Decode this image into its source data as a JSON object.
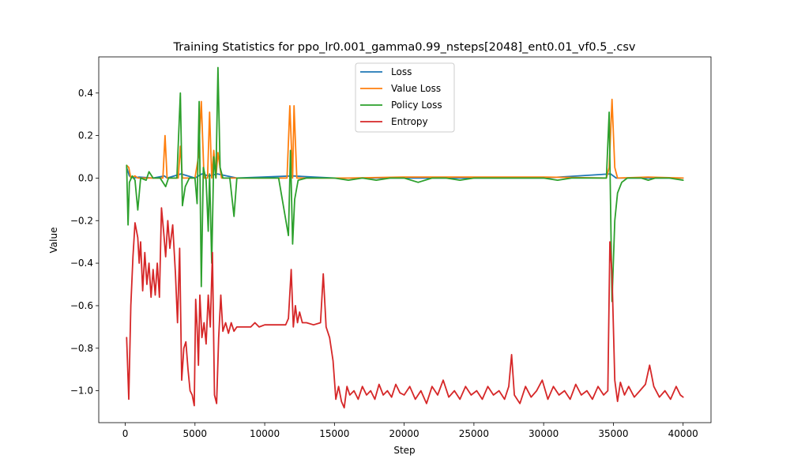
{
  "chart_data": {
    "type": "line",
    "title": "Training Statistics for ppo_lr0.001_gamma0.99_nsteps[2048]_ent0.01_vf0.5_.csv",
    "xlabel": "Step",
    "ylabel": "Value",
    "xlim": [
      -1900,
      42000
    ],
    "ylim": [
      -1.15,
      0.57
    ],
    "xticks": [
      0,
      5000,
      10000,
      15000,
      20000,
      25000,
      30000,
      35000,
      40000
    ],
    "yticks": [
      -1.0,
      -0.8,
      -0.6,
      -0.4,
      -0.2,
      0.0,
      0.2,
      0.4
    ],
    "ytick_labels": [
      "−1.0",
      "−0.8",
      "−0.6",
      "−0.4",
      "−0.2",
      "0.0",
      "0.2",
      "0.4"
    ],
    "legend_position": "upper center",
    "series": [
      {
        "name": "Loss",
        "color": "#1f77b4",
        "points": [
          [
            100,
            0.05
          ],
          [
            300,
            0.01
          ],
          [
            600,
            0.0
          ],
          [
            1000,
            0.005
          ],
          [
            2000,
            0.0
          ],
          [
            2800,
            0.01
          ],
          [
            3000,
            0.0
          ],
          [
            4000,
            0.02
          ],
          [
            5000,
            0.0
          ],
          [
            5500,
            0.02
          ],
          [
            6000,
            0.01
          ],
          [
            6600,
            0.02
          ],
          [
            8000,
            0.0
          ],
          [
            12000,
            0.01
          ],
          [
            15000,
            0.0
          ],
          [
            20000,
            0.0
          ],
          [
            25000,
            0.0
          ],
          [
            30000,
            0.0
          ],
          [
            34800,
            0.02
          ],
          [
            35200,
            0.0
          ],
          [
            40000,
            0.0
          ]
        ]
      },
      {
        "name": "Value Loss",
        "color": "#ff7f0e",
        "points": [
          [
            100,
            0.06
          ],
          [
            250,
            0.05
          ],
          [
            400,
            0.0
          ],
          [
            700,
            0.01
          ],
          [
            900,
            0.0
          ],
          [
            1500,
            0.0
          ],
          [
            2700,
            0.0
          ],
          [
            2850,
            0.2
          ],
          [
            3000,
            0.0
          ],
          [
            3800,
            0.0
          ],
          [
            3950,
            0.15
          ],
          [
            4100,
            0.0
          ],
          [
            5000,
            0.0
          ],
          [
            5250,
            0.1
          ],
          [
            5450,
            0.36
          ],
          [
            5650,
            0.0
          ],
          [
            5900,
            0.0
          ],
          [
            6050,
            0.31
          ],
          [
            6200,
            0.0
          ],
          [
            6350,
            0.13
          ],
          [
            6500,
            0.0
          ],
          [
            6650,
            0.12
          ],
          [
            6900,
            0.0
          ],
          [
            8000,
            0.0
          ],
          [
            11600,
            0.0
          ],
          [
            11800,
            0.34
          ],
          [
            12000,
            0.0
          ],
          [
            12100,
            0.34
          ],
          [
            12300,
            0.0
          ],
          [
            13500,
            0.0
          ],
          [
            16000,
            0.0
          ],
          [
            20000,
            0.005
          ],
          [
            25000,
            0.005
          ],
          [
            30000,
            0.005
          ],
          [
            34500,
            0.0
          ],
          [
            34700,
            0.05
          ],
          [
            34900,
            0.37
          ],
          [
            35100,
            0.05
          ],
          [
            35300,
            0.0
          ],
          [
            37500,
            0.005
          ],
          [
            40000,
            0.0
          ]
        ]
      },
      {
        "name": "Policy Loss",
        "color": "#2ca02c",
        "points": [
          [
            100,
            0.06
          ],
          [
            200,
            -0.22
          ],
          [
            300,
            -0.02
          ],
          [
            500,
            0.01
          ],
          [
            700,
            -0.01
          ],
          [
            900,
            -0.15
          ],
          [
            1100,
            0.0
          ],
          [
            1500,
            -0.01
          ],
          [
            1700,
            0.03
          ],
          [
            2000,
            0.0
          ],
          [
            2500,
            0.0
          ],
          [
            2900,
            -0.04
          ],
          [
            3100,
            0.0
          ],
          [
            3400,
            0.0
          ],
          [
            3700,
            0.0
          ],
          [
            3950,
            0.4
          ],
          [
            4100,
            -0.13
          ],
          [
            4300,
            -0.04
          ],
          [
            4600,
            0.0
          ],
          [
            5000,
            0.0
          ],
          [
            5150,
            -0.12
          ],
          [
            5300,
            0.36
          ],
          [
            5450,
            -0.51
          ],
          [
            5600,
            0.05
          ],
          [
            5800,
            -0.01
          ],
          [
            5950,
            -0.25
          ],
          [
            6050,
            0.02
          ],
          [
            6200,
            -0.4
          ],
          [
            6350,
            0.1
          ],
          [
            6500,
            0.0
          ],
          [
            6650,
            0.52
          ],
          [
            6800,
            0.05
          ],
          [
            7000,
            0.0
          ],
          [
            7500,
            0.0
          ],
          [
            7800,
            -0.18
          ],
          [
            8000,
            0.0
          ],
          [
            9000,
            0.0
          ],
          [
            10000,
            0.0
          ],
          [
            11000,
            0.0
          ],
          [
            11700,
            -0.27
          ],
          [
            11850,
            0.13
          ],
          [
            12000,
            -0.31
          ],
          [
            12150,
            -0.1
          ],
          [
            12400,
            -0.01
          ],
          [
            13000,
            0.0
          ],
          [
            14000,
            0.0
          ],
          [
            15000,
            0.0
          ],
          [
            16000,
            -0.01
          ],
          [
            17000,
            0.0
          ],
          [
            18000,
            -0.01
          ],
          [
            19000,
            0.0
          ],
          [
            20000,
            0.0
          ],
          [
            21000,
            -0.02
          ],
          [
            22000,
            0.0
          ],
          [
            23000,
            0.0
          ],
          [
            24000,
            -0.01
          ],
          [
            25000,
            0.0
          ],
          [
            26000,
            0.0
          ],
          [
            27000,
            0.0
          ],
          [
            28000,
            0.0
          ],
          [
            29000,
            0.0
          ],
          [
            30000,
            0.0
          ],
          [
            31000,
            -0.01
          ],
          [
            32000,
            0.0
          ],
          [
            33000,
            0.0
          ],
          [
            34000,
            0.0
          ],
          [
            34500,
            0.0
          ],
          [
            34700,
            0.31
          ],
          [
            34900,
            -0.58
          ],
          [
            35100,
            -0.2
          ],
          [
            35300,
            -0.07
          ],
          [
            35600,
            -0.02
          ],
          [
            36000,
            0.0
          ],
          [
            37000,
            0.0
          ],
          [
            37500,
            -0.01
          ],
          [
            38000,
            0.0
          ],
          [
            39000,
            0.0
          ],
          [
            40000,
            -0.01
          ]
        ]
      },
      {
        "name": "Entropy",
        "color": "#d62728",
        "points": [
          [
            100,
            -0.75
          ],
          [
            250,
            -1.04
          ],
          [
            400,
            -0.6
          ],
          [
            550,
            -0.37
          ],
          [
            700,
            -0.21
          ],
          [
            900,
            -0.28
          ],
          [
            1000,
            -0.4
          ],
          [
            1100,
            -0.3
          ],
          [
            1250,
            -0.53
          ],
          [
            1400,
            -0.35
          ],
          [
            1550,
            -0.5
          ],
          [
            1700,
            -0.4
          ],
          [
            1850,
            -0.56
          ],
          [
            2000,
            -0.43
          ],
          [
            2150,
            -0.55
          ],
          [
            2300,
            -0.4
          ],
          [
            2450,
            -0.56
          ],
          [
            2600,
            -0.14
          ],
          [
            2750,
            -0.25
          ],
          [
            2900,
            -0.37
          ],
          [
            3050,
            -0.2
          ],
          [
            3200,
            -0.33
          ],
          [
            3400,
            -0.22
          ],
          [
            3600,
            -0.45
          ],
          [
            3750,
            -0.68
          ],
          [
            3900,
            -0.33
          ],
          [
            4050,
            -0.95
          ],
          [
            4200,
            -0.8
          ],
          [
            4350,
            -0.77
          ],
          [
            4500,
            -0.9
          ],
          [
            4650,
            -1.0
          ],
          [
            4800,
            -1.02
          ],
          [
            4950,
            -1.07
          ],
          [
            5050,
            -0.57
          ],
          [
            5150,
            -0.7
          ],
          [
            5250,
            -0.88
          ],
          [
            5350,
            -0.55
          ],
          [
            5500,
            -0.75
          ],
          [
            5650,
            -0.68
          ],
          [
            5800,
            -0.78
          ],
          [
            5950,
            -0.55
          ],
          [
            6100,
            -0.7
          ],
          [
            6250,
            -0.35
          ],
          [
            6400,
            -1.02
          ],
          [
            6550,
            -1.06
          ],
          [
            6700,
            -0.75
          ],
          [
            6850,
            -0.55
          ],
          [
            7000,
            -0.72
          ],
          [
            7200,
            -0.68
          ],
          [
            7400,
            -0.73
          ],
          [
            7600,
            -0.68
          ],
          [
            7800,
            -0.72
          ],
          [
            8000,
            -0.7
          ],
          [
            9000,
            -0.7
          ],
          [
            9300,
            -0.68
          ],
          [
            9600,
            -0.7
          ],
          [
            10000,
            -0.69
          ],
          [
            11000,
            -0.69
          ],
          [
            11500,
            -0.69
          ],
          [
            11700,
            -0.66
          ],
          [
            11900,
            -0.43
          ],
          [
            12050,
            -0.7
          ],
          [
            12200,
            -0.6
          ],
          [
            12350,
            -0.68
          ],
          [
            12500,
            -0.63
          ],
          [
            12700,
            -0.68
          ],
          [
            13000,
            -0.68
          ],
          [
            13500,
            -0.69
          ],
          [
            14000,
            -0.68
          ],
          [
            14200,
            -0.45
          ],
          [
            14400,
            -0.7
          ],
          [
            14650,
            -0.75
          ],
          [
            14900,
            -0.86
          ],
          [
            15100,
            -1.04
          ],
          [
            15300,
            -0.98
          ],
          [
            15500,
            -1.05
          ],
          [
            15700,
            -1.08
          ],
          [
            15900,
            -0.98
          ],
          [
            16100,
            -1.02
          ],
          [
            16400,
            -1.0
          ],
          [
            16700,
            -1.04
          ],
          [
            17000,
            -0.98
          ],
          [
            17300,
            -1.02
          ],
          [
            17600,
            -1.0
          ],
          [
            17900,
            -1.04
          ],
          [
            18200,
            -0.97
          ],
          [
            18500,
            -1.02
          ],
          [
            18800,
            -1.0
          ],
          [
            19100,
            -1.03
          ],
          [
            19400,
            -0.97
          ],
          [
            19700,
            -1.01
          ],
          [
            20000,
            -1.02
          ],
          [
            20400,
            -0.98
          ],
          [
            20800,
            -1.04
          ],
          [
            21200,
            -1.0
          ],
          [
            21600,
            -1.06
          ],
          [
            22000,
            -0.98
          ],
          [
            22400,
            -1.02
          ],
          [
            22800,
            -0.95
          ],
          [
            23200,
            -1.03
          ],
          [
            23600,
            -1.0
          ],
          [
            24000,
            -1.04
          ],
          [
            24400,
            -0.98
          ],
          [
            24800,
            -1.02
          ],
          [
            25200,
            -1.0
          ],
          [
            25600,
            -1.04
          ],
          [
            26000,
            -0.98
          ],
          [
            26400,
            -1.02
          ],
          [
            26800,
            -1.0
          ],
          [
            27200,
            -1.04
          ],
          [
            27500,
            -0.98
          ],
          [
            27700,
            -0.83
          ],
          [
            27900,
            -1.02
          ],
          [
            28300,
            -1.06
          ],
          [
            28700,
            -0.98
          ],
          [
            29100,
            -1.03
          ],
          [
            29500,
            -1.0
          ],
          [
            29900,
            -0.95
          ],
          [
            30300,
            -1.04
          ],
          [
            30700,
            -0.98
          ],
          [
            31100,
            -1.02
          ],
          [
            31500,
            -1.0
          ],
          [
            31900,
            -1.04
          ],
          [
            32300,
            -0.97
          ],
          [
            32700,
            -1.02
          ],
          [
            33100,
            -1.0
          ],
          [
            33500,
            -1.04
          ],
          [
            33900,
            -0.98
          ],
          [
            34300,
            -1.02
          ],
          [
            34600,
            -1.0
          ],
          [
            34750,
            -0.3
          ],
          [
            34900,
            -0.45
          ],
          [
            35100,
            -0.95
          ],
          [
            35300,
            -1.05
          ],
          [
            35500,
            -0.96
          ],
          [
            35800,
            -1.02
          ],
          [
            36100,
            -0.98
          ],
          [
            36500,
            -1.03
          ],
          [
            36900,
            -1.0
          ],
          [
            37300,
            -0.97
          ],
          [
            37600,
            -0.88
          ],
          [
            37900,
            -0.98
          ],
          [
            38300,
            -1.03
          ],
          [
            38700,
            -1.0
          ],
          [
            39100,
            -1.04
          ],
          [
            39500,
            -0.98
          ],
          [
            39800,
            -1.02
          ],
          [
            40000,
            -1.03
          ]
        ]
      }
    ]
  }
}
